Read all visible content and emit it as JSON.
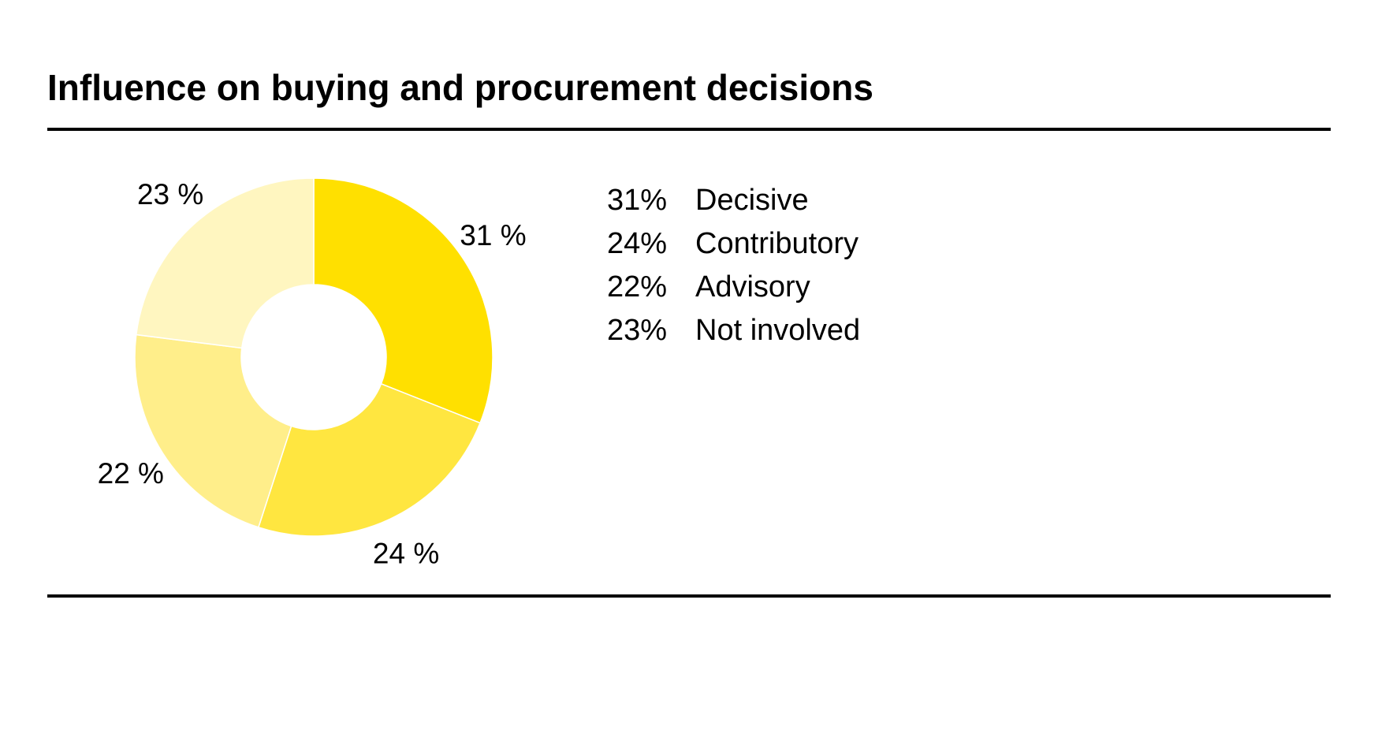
{
  "title": "Influence on buying and procurement decisions",
  "chart_data": {
    "type": "pie",
    "style": "donut",
    "title": "Influence on buying and procurement decisions",
    "slices": [
      {
        "label": "Decisive",
        "value": 31,
        "label_text": "31 %",
        "legend_value": "31%",
        "color": "#FFE000"
      },
      {
        "label": "Contributory",
        "value": 24,
        "label_text": "24 %",
        "legend_value": "24%",
        "color": "#FFE640"
      },
      {
        "label": "Advisory",
        "value": 22,
        "label_text": "22 %",
        "legend_value": "22%",
        "color": "#FFEE8A"
      },
      {
        "label": "Not involved",
        "value": 23,
        "label_text": "23 %",
        "legend_value": "23%",
        "color": "#FFF6C0"
      }
    ],
    "legend_placement": "right"
  }
}
